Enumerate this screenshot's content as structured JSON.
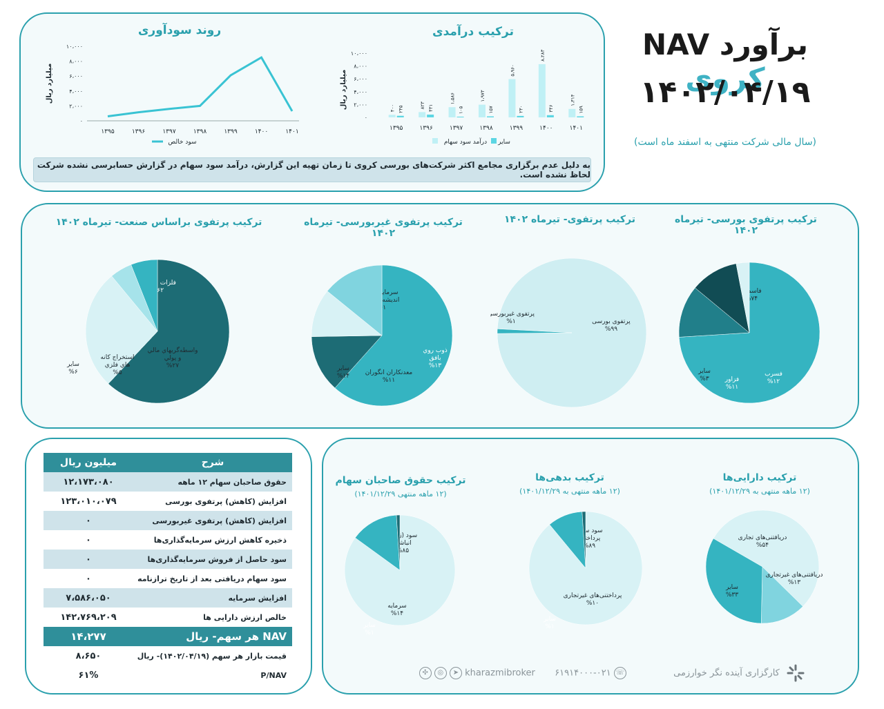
{
  "header": {
    "title_main": "برآورد NAV",
    "title_company": "کروی",
    "date": "۱۴۰۲/۰۴/۱۹",
    "fiscal_note": "(سال مالی شرکت منتهی به اسفند ماه است)"
  },
  "notice": "به دلیل عدم برگزاری مجامع اکثر شرکت‌های بورسی کروی تا زمان تهیه این گزارش، درآمد سود سهام در گزارش حسابرسی نشده شرکت لحاظ نشده است.",
  "charts_text": {
    "profit_title": "روند سودآوری",
    "revenue_title": "ترکیب درآمدی",
    "ylabel": "میلیارد ریال",
    "profit_legend": "سود خالص",
    "revenue_legend_1": "درآمد سود سهام",
    "revenue_legend_2": "سایر",
    "pie1_title_a": "ترکیب پرتفوی بورسی- تیرماه",
    "pie1_title_b": "۱۴۰۲",
    "pie2_title": "ترکیب پرتفوی- تیرماه ۱۴۰۲",
    "pie3_title_a": "ترکیب پرتفوی غیربورسی- تیرماه",
    "pie3_title_b": "۱۴۰۲",
    "pie4_title": "ترکیب پرتفوی براساس صنعت- تیرماه ۱۴۰۲",
    "pie5_title": "ترکیب دارایی‌ها",
    "pie5_sub": "(۱۲ ماهه منتهی به ۱۴۰۱/۱۲/۲۹)",
    "pie6_title": "ترکیب بدهی‌ها",
    "pie6_sub": "(۱۲ ماهه منتهی به ۱۴۰۱/۱۲/۲۹)",
    "pie7_title": "ترکیب حقوق صاحبان سهام",
    "pie7_sub": "(۱۲ ماهه منتهی ۱۴۰۱/۱۲/۲۹)"
  },
  "chart_data": [
    {
      "type": "line",
      "title": "روند سودآوری",
      "ylabel": "میلیارد ریال",
      "categories": [
        "۱۳۹۵",
        "۱۳۹۶",
        "۱۳۹۷",
        "۱۳۹۸",
        "۱۳۹۹",
        "۱۴۰۰",
        "۱۴۰۱"
      ],
      "series": [
        {
          "name": "سود خالص",
          "values": [
            600,
            1150,
            1600,
            2000,
            6100,
            8500,
            1300
          ]
        }
      ],
      "yticks": [
        "۰",
        "۲،۰۰۰",
        "۴،۰۰۰",
        "۶،۰۰۰",
        "۸،۰۰۰",
        "۱۰،۰۰۰"
      ],
      "ylim": [
        0,
        10000
      ],
      "color": "#39c3d3"
    },
    {
      "type": "bar",
      "title": "ترکیب درآمدی",
      "ylabel": "میلیارد ریال",
      "categories": [
        "۱۳۹۵",
        "۱۳۹۶",
        "۱۳۹۷",
        "۱۳۹۸",
        "۱۳۹۹",
        "۱۴۰۰",
        "۱۴۰۱"
      ],
      "series": [
        {
          "name": "درآمد سود سهام",
          "values": [
            400,
            823,
            1586,
            1973,
            5960,
            8283,
            1314
          ],
          "labels": [
            "۴۰۰",
            "۸۲۳",
            "۱،۵۸۶",
            "۱،۹۷۳",
            "۵،۹۶۰",
            "۸،۲۸۳",
            "۱،۳۱۴"
          ],
          "color": "#bff0f5"
        },
        {
          "name": "سایر",
          "values": [
            245,
            431,
            105,
            157,
            230,
            346,
            159
          ],
          "labels": [
            "۲۴۵",
            "۴۳۱",
            "۱۰۵",
            "۱۵۷",
            "۲۳۰",
            "۳۴۶",
            "۱۵۹"
          ],
          "color": "#5cd6e3"
        }
      ],
      "yticks": [
        "۰",
        "۲،۰۰۰",
        "۴،۰۰۰",
        "۶،۰۰۰",
        "۸،۰۰۰",
        "۱۰،۰۰۰"
      ],
      "ylim": [
        0,
        10000
      ]
    },
    {
      "type": "pie",
      "title": "ترکیب پرتفوی بورسی- تیرماه ۱۴۰۲",
      "slices": [
        {
          "label": "فاسمین",
          "pct": "%۷۴",
          "value": 74,
          "color": "#35b4c1"
        },
        {
          "label": "فسرب",
          "pct": "%۱۲",
          "value": 12,
          "color": "#217f8a"
        },
        {
          "label": "فزاور",
          "pct": "%۱۱",
          "value": 11,
          "color": "#114c54"
        },
        {
          "label": "سایر",
          "pct": "%۳",
          "value": 3,
          "color": "#d8f2f5"
        }
      ]
    },
    {
      "type": "pie",
      "title": "ترکیب پرتفوی- تیرماه ۱۴۰۲",
      "slices": [
        {
          "label": "پرتفوی بورسی",
          "pct": "%۹۹",
          "value": 99,
          "color": "#cfeef2"
        },
        {
          "label": "پرتفوی غیربورسی",
          "pct": "%۱",
          "value": 1,
          "color": "#35b4c1"
        }
      ]
    },
    {
      "type": "pie",
      "title": "ترکیب پرتفوی غیربورسی- تیرماه ۱۴۰۲",
      "slices": [
        {
          "label": "سرمایه گذاري انديشه محوران",
          "pct": "%۶۱",
          "value": 61,
          "color": "#35b4c1"
        },
        {
          "label": "ذوب روي بافق",
          "pct": "%۱۳",
          "value": 13,
          "color": "#1d6c75"
        },
        {
          "label": "معدنکاران انگوران",
          "pct": "%۱۱",
          "value": 11,
          "color": "#d8f2f5"
        },
        {
          "label": "سایر",
          "pct": "%۱۴",
          "value": 14,
          "color": "#80d4df"
        }
      ]
    },
    {
      "type": "pie",
      "title": "ترکیب پرتفوی براساس صنعت- تیرماه ۱۴۰۲",
      "slices": [
        {
          "label": "فلزات اساسي",
          "pct": "%۶۲",
          "value": 62,
          "color": "#1d6c75"
        },
        {
          "label": "واسطه‌گريهاي مالي و پولي",
          "pct": "%۲۷",
          "value": 27,
          "color": "#d8f2f5"
        },
        {
          "label": "استخراج کانه هاي فلزي",
          "pct": "%۵",
          "value": 5,
          "color": "#a6e3ea"
        },
        {
          "label": "سایر",
          "pct": "%۶",
          "value": 6,
          "color": "#35b4c1"
        }
      ]
    },
    {
      "type": "pie",
      "title": "ترکیب دارایی‌ها",
      "slices": [
        {
          "label": "دریافتنی‌های تجاری",
          "pct": "%۵۴",
          "value": 54,
          "color": "#d8f2f5"
        },
        {
          "label": "دریافتنی‌های غیرتجاری",
          "pct": "%۱۳",
          "value": 13,
          "color": "#80d4df"
        },
        {
          "label": "سایر",
          "pct": "%۳۳",
          "value": 33,
          "color": "#35b4c1"
        }
      ]
    },
    {
      "type": "pie",
      "title": "ترکیب بدهی‌ها",
      "slices": [
        {
          "label": "سود سهام پرداختنی",
          "pct": "%۸۹",
          "value": 89,
          "color": "#d8f2f5"
        },
        {
          "label": "پرداختنی‌های غیرتجاری",
          "pct": "%۱۰",
          "value": 10,
          "color": "#35b4c1"
        },
        {
          "label": "سایر",
          "pct": "%۱",
          "value": 1,
          "color": "#1d6c75"
        }
      ]
    },
    {
      "type": "pie",
      "title": "ترکیب حقوق صاحبان سهام",
      "slices": [
        {
          "label": "سود (زیان) انباشته",
          "pct": "%۸۵",
          "value": 85,
          "color": "#d8f2f5"
        },
        {
          "label": "سرمایه",
          "pct": "%۱۴",
          "value": 14,
          "color": "#35b4c1"
        },
        {
          "label": "سایر",
          "pct": "%۱",
          "value": 1,
          "color": "#1d6c75"
        }
      ]
    }
  ],
  "nav_table": {
    "col_desc": "شرح",
    "col_val": "میلیون ریال",
    "rows": [
      {
        "label": "حقوق صاحبان سهام ۱۲ ماهه",
        "value": "۱۲،۱۷۳،۰۸۰",
        "style": "alt"
      },
      {
        "label": "افزایش (کاهش) پرتفوی بورسی",
        "value": "۱۲۳،۰۱۰،۰۷۹",
        "style": "plain"
      },
      {
        "label": "افزایش (کاهش) پرتفوی غیربورسی",
        "value": "۰",
        "style": "alt"
      },
      {
        "label": "ذخیره کاهش ارزش سرمایه‌گذاری‌ها",
        "value": "۰",
        "style": "plain"
      },
      {
        "label": "سود حاصل از فروش سرمایه‌گذاری‌ها",
        "value": "۰",
        "style": "alt"
      },
      {
        "label": "سود سهام دریافتی بعد از تاریخ ترازنامه",
        "value": "۰",
        "style": "plain"
      },
      {
        "label": "افزایش سرمایه",
        "value": "۷،۵۸۶،۰۵۰",
        "style": "alt"
      },
      {
        "label": "خالص ارزش دارایی ها",
        "value": "۱۴۲،۷۶۹،۲۰۹",
        "style": "plain"
      },
      {
        "label": "NAV هر سهم- ریال",
        "value": "۱۴،۲۷۷",
        "style": "hl"
      },
      {
        "label": "قیمت بازار هر سهم (۱۴۰۲/۰۴/۱۹)- ریال",
        "value": "۸،۶۵۰",
        "style": "plain"
      },
      {
        "label": "P/NAV",
        "value": "۶۱%",
        "style": "plain"
      }
    ]
  },
  "footer": {
    "broker": "کارگزاری آینده نگر خوارزمی",
    "phone": "۰۲۱-۶۱۹۱۴۰۰۰",
    "handle": "kharazmibroker"
  }
}
